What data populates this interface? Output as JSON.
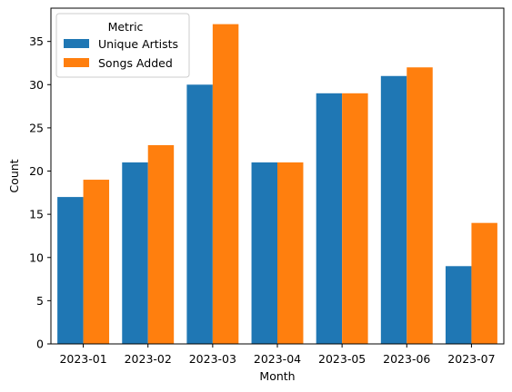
{
  "chart_data": {
    "type": "bar",
    "xlabel": "Month",
    "ylabel": "Count",
    "ylim": [
      0,
      38.85
    ],
    "yticks": [
      0,
      5,
      10,
      15,
      20,
      25,
      30,
      35
    ],
    "categories": [
      "2023-01",
      "2023-02",
      "2023-03",
      "2023-04",
      "2023-05",
      "2023-06",
      "2023-07"
    ],
    "legend": {
      "title": "Metric",
      "placement": "upper-left"
    },
    "grid": false,
    "series": [
      {
        "name": "Unique Artists",
        "color": "#1f77b4",
        "values": [
          17,
          21,
          30,
          21,
          29,
          31,
          9
        ]
      },
      {
        "name": "Songs Added",
        "color": "#ff7f0e",
        "values": [
          19,
          23,
          37,
          21,
          29,
          32,
          14
        ]
      }
    ]
  }
}
